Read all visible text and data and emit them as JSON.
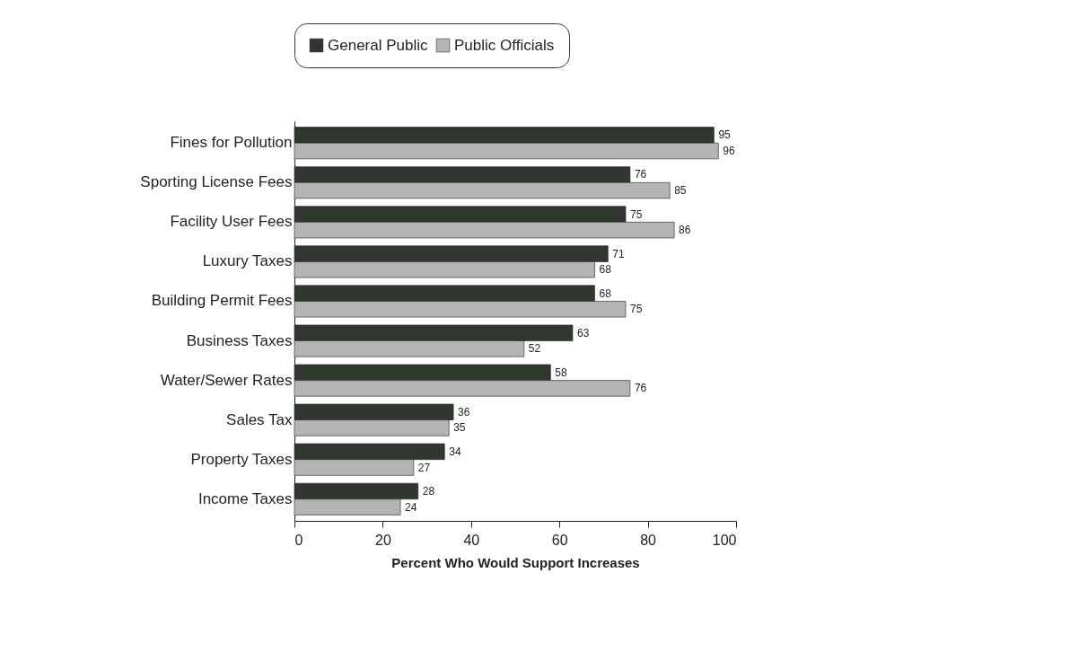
{
  "chart_data": {
    "type": "bar",
    "orientation": "horizontal",
    "categories": [
      "Fines for Pollution",
      "Sporting License Fees",
      "Facility User Fees",
      "Luxury Taxes",
      "Building Permit Fees",
      "Business Taxes",
      "Water/Sewer Rates",
      "Sales Tax",
      "Property Taxes",
      "Income Taxes"
    ],
    "series": [
      {
        "name": "General Public",
        "color": "#2f372f",
        "values": [
          95,
          76,
          75,
          71,
          68,
          63,
          58,
          36,
          34,
          28
        ]
      },
      {
        "name": "Public Officials",
        "color": "#b4b4b4",
        "values": [
          96,
          85,
          86,
          68,
          75,
          52,
          76,
          35,
          27,
          24
        ]
      }
    ],
    "xlabel": "Percent Who Would Support Increases",
    "xlim": [
      0,
      100
    ],
    "xticks": [
      0,
      20,
      40,
      60,
      80,
      100
    ],
    "data_labels": true,
    "legend": "top",
    "grid": false
  }
}
